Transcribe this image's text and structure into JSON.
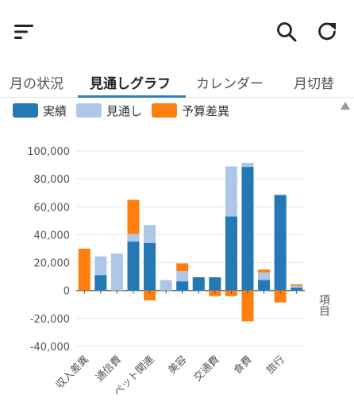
{
  "tabs": [
    {
      "label": "月の状況"
    },
    {
      "label": "見通しグラフ"
    },
    {
      "label": "カレンダー"
    },
    {
      "label": "月切替"
    }
  ],
  "legend": [
    {
      "label": "実績",
      "color": "#2479b4"
    },
    {
      "label": "見通し",
      "color": "#aec7e8"
    },
    {
      "label": "予算差異",
      "color": "#ff7f0e"
    }
  ],
  "icons": {
    "menu": "sort-icon",
    "search": "search-icon",
    "refresh": "refresh-icon"
  },
  "chart_data": {
    "type": "bar",
    "xlabel": "項目",
    "ylim": [
      -40000,
      100000
    ],
    "yticks": [
      -40000,
      -20000,
      0,
      20000,
      40000,
      60000,
      80000,
      100000
    ],
    "ytick_labels": [
      "-40,000",
      "-20,000",
      "0",
      "20,000",
      "40,000",
      "60,000",
      "80,000",
      "100,000"
    ],
    "visible_category_labels": [
      "収入差異",
      "通信費",
      "ペット関連",
      "美容",
      "交通費",
      "食費",
      "旅行"
    ],
    "groups": [
      {
        "label": "収入差異",
        "actual": 0,
        "forecast": 0,
        "variance": 30000
      },
      {
        "label": "",
        "actual": 11000,
        "forecast": 24500,
        "variance": 0
      },
      {
        "label": "通信費",
        "actual": 0,
        "forecast": 26500,
        "variance": 0
      },
      {
        "label": "",
        "actual": 35000,
        "forecast": 40500,
        "variance": 24500
      },
      {
        "label": "ペット関連",
        "actual": 34000,
        "forecast": 47000,
        "variance": -7000
      },
      {
        "label": "",
        "actual": 0,
        "forecast": 7500,
        "variance": 0
      },
      {
        "label": "美容",
        "actual": 6500,
        "forecast": 14000,
        "variance": 5500
      },
      {
        "label": "",
        "actual": 9500,
        "forecast": 9500,
        "variance": 0
      },
      {
        "label": "交通費",
        "actual": 9500,
        "forecast": 9500,
        "variance": -4000
      },
      {
        "label": "",
        "actual": 53000,
        "forecast": 89000,
        "variance": -4000
      },
      {
        "label": "食費",
        "actual": 88500,
        "forecast": 91500,
        "variance": -22000
      },
      {
        "label": "",
        "actual": 7500,
        "forecast": 13000,
        "variance": 2000
      },
      {
        "label": "旅行",
        "actual": 68500,
        "forecast": 68500,
        "variance": -8500
      },
      {
        "label": "",
        "actual": 2000,
        "forecast": 3500,
        "variance": 1000
      }
    ]
  }
}
